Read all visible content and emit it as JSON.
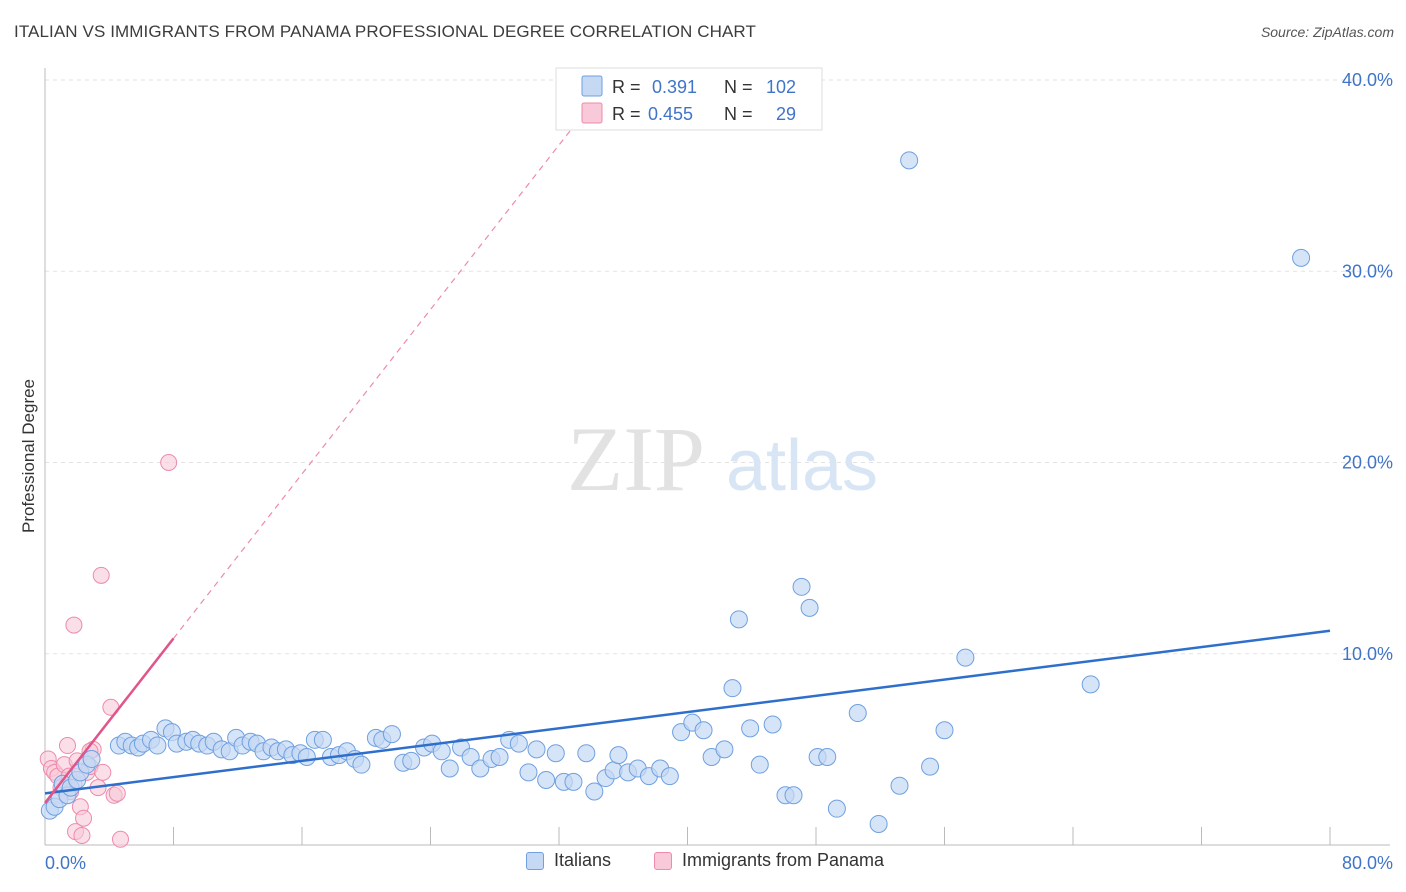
{
  "title": "ITALIAN VS IMMIGRANTS FROM PANAMA PROFESSIONAL DEGREE CORRELATION CHART",
  "source": "Source: ZipAtlas.com",
  "watermark": {
    "zip": "ZIP",
    "atlas": "atlas"
  },
  "colors": {
    "italians": "#6fa0e0",
    "italians_fill": "#c5d9f4",
    "italians_line": "#2f6fcc",
    "panama": "#ee8aaa",
    "panama_fill": "#f8c9d8",
    "panama_line": "#e0558a",
    "axis_text": "#3f74c8"
  },
  "legend": {
    "series1": {
      "name": "Italians",
      "r_label": "R =",
      "r_value": "0.391",
      "n_label": "N =",
      "n_value": "102"
    },
    "series2": {
      "name": "Immigrants from Panama",
      "r_label": "R =",
      "r_value": "0.455",
      "n_label": "N =",
      "n_value": "29"
    }
  },
  "chart_data": {
    "type": "scatter",
    "ylabel": "Professional Degree",
    "xlim": [
      0,
      80
    ],
    "ylim": [
      0,
      40
    ],
    "x_tick_labels": [
      "0.0%",
      "80.0%"
    ],
    "y_ticks": [
      10,
      20,
      30,
      40
    ],
    "y_tick_labels": [
      "10.0%",
      "20.0%",
      "30.0%",
      "40.0%"
    ],
    "grid": true,
    "series": [
      {
        "name": "Italians",
        "trend": {
          "x": [
            0,
            80
          ],
          "y": [
            2.7,
            11.2
          ]
        },
        "points": [
          [
            0.3,
            1.8
          ],
          [
            0.6,
            2.0
          ],
          [
            0.9,
            2.4
          ],
          [
            1.1,
            3.2
          ],
          [
            1.4,
            2.6
          ],
          [
            1.6,
            3.0
          ],
          [
            2.0,
            3.4
          ],
          [
            2.2,
            3.8
          ],
          [
            2.6,
            4.2
          ],
          [
            2.9,
            4.5
          ],
          [
            4.6,
            5.2
          ],
          [
            5.0,
            5.4
          ],
          [
            5.4,
            5.2
          ],
          [
            5.8,
            5.1
          ],
          [
            6.1,
            5.3
          ],
          [
            6.6,
            5.5
          ],
          [
            7.0,
            5.2
          ],
          [
            7.5,
            6.1
          ],
          [
            7.9,
            5.9
          ],
          [
            8.2,
            5.3
          ],
          [
            8.8,
            5.4
          ],
          [
            9.2,
            5.5
          ],
          [
            9.6,
            5.3
          ],
          [
            10.1,
            5.2
          ],
          [
            10.5,
            5.4
          ],
          [
            11.0,
            5.0
          ],
          [
            11.5,
            4.9
          ],
          [
            11.9,
            5.6
          ],
          [
            12.3,
            5.2
          ],
          [
            12.8,
            5.4
          ],
          [
            13.2,
            5.3
          ],
          [
            13.6,
            4.9
          ],
          [
            14.1,
            5.1
          ],
          [
            14.5,
            4.9
          ],
          [
            15.0,
            5.0
          ],
          [
            15.4,
            4.7
          ],
          [
            15.9,
            4.8
          ],
          [
            16.3,
            4.6
          ],
          [
            16.8,
            5.5
          ],
          [
            17.3,
            5.5
          ],
          [
            17.8,
            4.6
          ],
          [
            18.3,
            4.7
          ],
          [
            18.8,
            4.9
          ],
          [
            19.3,
            4.5
          ],
          [
            19.7,
            4.2
          ],
          [
            20.6,
            5.6
          ],
          [
            21.0,
            5.5
          ],
          [
            21.6,
            5.8
          ],
          [
            22.3,
            4.3
          ],
          [
            22.8,
            4.4
          ],
          [
            23.6,
            5.1
          ],
          [
            24.1,
            5.3
          ],
          [
            24.7,
            4.9
          ],
          [
            25.2,
            4.0
          ],
          [
            25.9,
            5.1
          ],
          [
            26.5,
            4.6
          ],
          [
            27.1,
            4.0
          ],
          [
            27.8,
            4.5
          ],
          [
            28.3,
            4.6
          ],
          [
            28.9,
            5.5
          ],
          [
            29.5,
            5.3
          ],
          [
            30.1,
            3.8
          ],
          [
            30.6,
            5.0
          ],
          [
            31.2,
            3.4
          ],
          [
            31.8,
            4.8
          ],
          [
            32.3,
            3.3
          ],
          [
            32.9,
            3.3
          ],
          [
            33.7,
            4.8
          ],
          [
            34.2,
            2.8
          ],
          [
            34.9,
            3.5
          ],
          [
            35.4,
            3.9
          ],
          [
            35.7,
            4.7
          ],
          [
            36.3,
            3.8
          ],
          [
            36.9,
            4.0
          ],
          [
            37.6,
            3.6
          ],
          [
            38.3,
            4.0
          ],
          [
            38.9,
            3.6
          ],
          [
            39.6,
            5.9
          ],
          [
            40.3,
            6.4
          ],
          [
            41.0,
            6.0
          ],
          [
            41.5,
            4.6
          ],
          [
            42.3,
            5.0
          ],
          [
            42.8,
            8.2
          ],
          [
            43.2,
            11.8
          ],
          [
            43.9,
            6.1
          ],
          [
            44.5,
            4.2
          ],
          [
            45.3,
            6.3
          ],
          [
            46.1,
            2.6
          ],
          [
            46.6,
            2.6
          ],
          [
            47.1,
            13.5
          ],
          [
            47.6,
            12.4
          ],
          [
            48.1,
            4.6
          ],
          [
            48.7,
            4.6
          ],
          [
            49.3,
            1.9
          ],
          [
            50.6,
            6.9
          ],
          [
            51.9,
            1.1
          ],
          [
            53.2,
            3.1
          ],
          [
            53.8,
            35.8
          ],
          [
            55.1,
            4.1
          ],
          [
            56.0,
            6.0
          ],
          [
            57.3,
            9.8
          ],
          [
            65.1,
            8.4
          ],
          [
            78.2,
            30.7
          ]
        ]
      },
      {
        "name": "Immigrants from Panama",
        "trend": {
          "x": [
            0,
            8
          ],
          "y": [
            2.2,
            10.8
          ]
        },
        "points": [
          [
            0.2,
            4.5
          ],
          [
            0.4,
            4.0
          ],
          [
            0.6,
            3.8
          ],
          [
            0.8,
            3.6
          ],
          [
            1.0,
            3.0
          ],
          [
            1.2,
            4.2
          ],
          [
            1.4,
            5.2
          ],
          [
            1.6,
            2.8
          ],
          [
            1.8,
            3.2
          ],
          [
            2.0,
            4.4
          ],
          [
            2.2,
            2.0
          ],
          [
            2.4,
            1.4
          ],
          [
            2.6,
            3.8
          ],
          [
            2.8,
            4.1
          ],
          [
            3.0,
            5.0
          ],
          [
            3.3,
            3.0
          ],
          [
            3.6,
            3.8
          ],
          [
            4.1,
            7.2
          ],
          [
            4.3,
            2.6
          ],
          [
            4.5,
            2.7
          ],
          [
            1.8,
            11.5
          ],
          [
            3.5,
            14.1
          ],
          [
            7.7,
            20.0
          ],
          [
            1.9,
            0.7
          ],
          [
            2.3,
            0.5
          ],
          [
            4.7,
            0.3
          ],
          [
            0.9,
            2.6
          ],
          [
            2.8,
            4.9
          ],
          [
            1.5,
            3.6
          ]
        ]
      }
    ]
  }
}
